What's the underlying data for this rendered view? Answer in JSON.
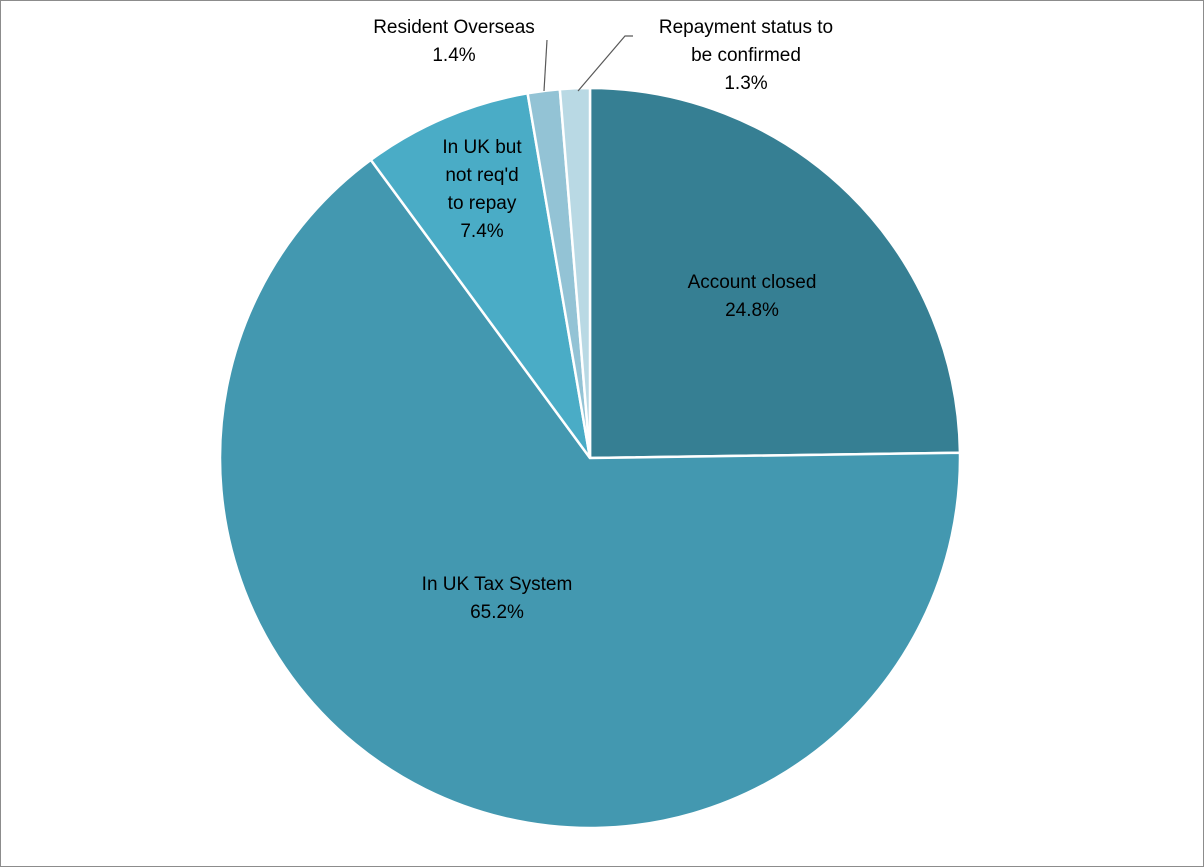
{
  "chart_data": {
    "type": "pie",
    "start_angle_deg": 0,
    "direction": "clockwise",
    "slices": [
      {
        "label": [
          "Account closed"
        ],
        "value": 24.8,
        "display": "24.8%",
        "color": "#367f93"
      },
      {
        "label": [
          "In UK Tax System"
        ],
        "value": 65.2,
        "display": "65.2%",
        "color": "#4398b0"
      },
      {
        "label": [
          "In UK but",
          "not req'd",
          "to repay"
        ],
        "value": 7.4,
        "display": "7.4%",
        "color": "#4aacc6"
      },
      {
        "label": [
          "Resident Overseas"
        ],
        "value": 1.4,
        "display": "1.4%",
        "color": "#93c3d5"
      },
      {
        "label": [
          "Repayment status to",
          "be confirmed"
        ],
        "value": 1.3,
        "display": "1.3%",
        "color": "#b9d9e4"
      }
    ],
    "legend": "none"
  }
}
